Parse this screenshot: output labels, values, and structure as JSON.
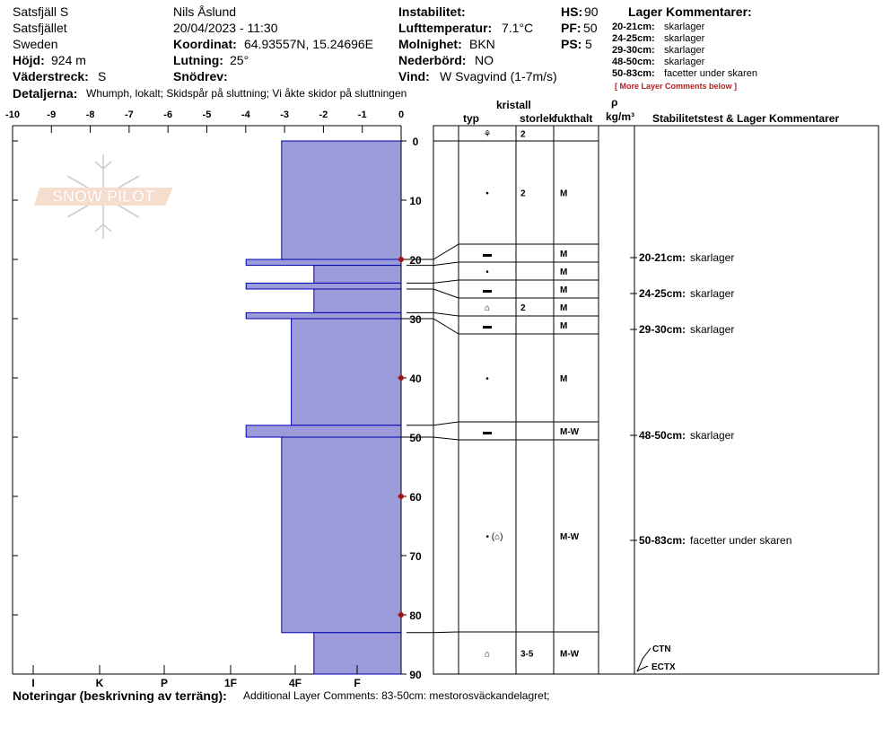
{
  "header": {
    "location": "Satsfjäll S",
    "area": "Satsfjället",
    "country": "Sweden",
    "elevation_label": "Höjd:",
    "elevation": "924 m",
    "aspect_label": "Väderstreck:",
    "aspect": "S",
    "details_label": "Detaljerna:",
    "details": "Whumph, lokalt;  Skidspår på sluttning;  Vi åkte skidor på sluttningen",
    "observer": "Nils Åslund",
    "datetime": "20/04/2023 - 11:30",
    "coord_label": "Koordinat:",
    "coord": "64.93557N, 15.24696E",
    "slope_label": "Lutning:",
    "slope": "25°",
    "snowdrift_label": "Snödrev:",
    "snowdrift": "",
    "instability_label": "Instabilitet:",
    "instability": "",
    "airtemp_label": "Lufttemperatur:",
    "airtemp": "7.1°C",
    "cloud_label": "Molnighet:",
    "cloud": "BKN",
    "precip_label": "Nederbörd:",
    "precip": "NO",
    "wind_label": "Vind:",
    "wind": "W Svagvind (1-7m/s)",
    "hs_label": "HS:",
    "hs": "90",
    "pf_label": "PF:",
    "pf": "50",
    "ps_label": "PS:",
    "ps": "5"
  },
  "layer_comments": {
    "title": "Lager Kommentarer:",
    "items": [
      {
        "range": "20-21cm:",
        "text": "skarlager"
      },
      {
        "range": "24-25cm:",
        "text": "skarlager"
      },
      {
        "range": "29-30cm:",
        "text": "skarlager"
      },
      {
        "range": "48-50cm:",
        "text": "skarlager"
      },
      {
        "range": "50-83cm:",
        "text": "facetter under skaren"
      }
    ],
    "more": "[ More Layer Comments below ]"
  },
  "columns": {
    "typ": "typ",
    "kristall": "kristall",
    "storlek": "storlek",
    "fukthalt": "fukthalt",
    "rho": "ρ",
    "rho_unit": "kg/m³",
    "stability": "Stabilitetstest & Lager Kommentarer"
  },
  "notes": {
    "label": "Noteringar (beskrivning av terräng):",
    "text": "Additional Layer Comments: 83-50cm: mestorosväckandelagret;"
  },
  "chart_data": {
    "type": "bar",
    "title": "",
    "orientation": "horizontal",
    "temp_axis_ticks": [
      "-10",
      "-9",
      "-8",
      "-7",
      "-6",
      "-5",
      "-4",
      "-3",
      "-2",
      "-1",
      "0"
    ],
    "depth_axis_ticks": [
      "0",
      "10",
      "20",
      "30",
      "40",
      "50",
      "60",
      "70",
      "80",
      "90"
    ],
    "depth_range_cm": [
      0,
      90
    ],
    "hardness_ticks": [
      "I",
      "K",
      "P",
      "1F",
      "4F",
      "F"
    ],
    "hardness_scale_max": 6.0,
    "temperature_points_depth_cm": [
      20,
      40,
      60,
      80
    ],
    "temperature_points_value": [
      0,
      0,
      0,
      0
    ],
    "layers": [
      {
        "top": 0,
        "bottom": 20,
        "hardness": 3.7,
        "grain": "⚘",
        "size": "2",
        "moist": ""
      },
      {
        "top": 20,
        "bottom": 21,
        "hardness": 4.8,
        "grain": "▬",
        "size": "",
        "moist": "M"
      },
      {
        "top": 21,
        "bottom": 24,
        "hardness": 2.7,
        "grain": "•",
        "size": "",
        "moist": "M"
      },
      {
        "top": 24,
        "bottom": 25,
        "hardness": 4.8,
        "grain": "▬",
        "size": "",
        "moist": "M"
      },
      {
        "top": 25,
        "bottom": 29,
        "hardness": 2.7,
        "grain": "⌂",
        "size": "2",
        "moist": "M"
      },
      {
        "top": 29,
        "bottom": 30,
        "hardness": 4.8,
        "grain": "▬",
        "size": "",
        "moist": "M"
      },
      {
        "top": 30,
        "bottom": 48,
        "hardness": 3.4,
        "grain": "•",
        "size": "",
        "moist": "M"
      },
      {
        "top": 48,
        "bottom": 50,
        "hardness": 4.8,
        "grain": "▬",
        "size": "",
        "moist": "M-W"
      },
      {
        "top": 50,
        "bottom": 83,
        "hardness": 3.7,
        "grain": "• (⌂)",
        "size": "",
        "moist": "M-W"
      },
      {
        "top": 83,
        "bottom": 90,
        "hardness": 2.7,
        "grain": "⌂",
        "size": "3-5",
        "moist": "M-W"
      }
    ],
    "stability_comments": [
      {
        "depth": 20.5,
        "range": "20-21cm:",
        "text": "skarlager"
      },
      {
        "depth": 24.5,
        "range": "24-25cm:",
        "text": "skarlager"
      },
      {
        "depth": 29.5,
        "range": "29-30cm:",
        "text": "skarlager"
      },
      {
        "depth": 49,
        "range": "48-50cm:",
        "text": "skarlager"
      },
      {
        "depth": 66.5,
        "range": "50-83cm:",
        "text": "facetter under skaren"
      }
    ],
    "tests": [
      {
        "name": "CTN",
        "depth": 90
      },
      {
        "name": "ECTX",
        "depth": 90
      }
    ],
    "colors": {
      "bar_fill": "#9b9bd9",
      "bar_stroke": "#0000b0",
      "temp_point": "#a01818"
    }
  }
}
